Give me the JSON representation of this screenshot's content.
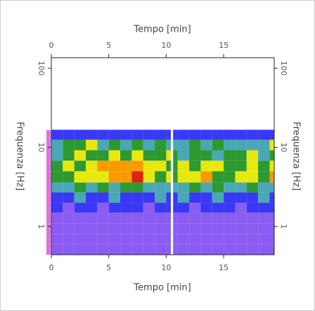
{
  "chart_data": {
    "type": "heatmap",
    "xlabel": "Tempo [min]",
    "ylabel": "Frequenza [Hz]",
    "x": [
      0,
      1,
      2,
      3,
      4,
      5,
      6,
      7,
      8,
      9,
      10,
      10.4,
      10.6,
      11,
      12,
      13,
      14,
      15,
      16,
      17,
      18,
      19,
      19.4
    ],
    "y": [
      0.44,
      0.6,
      0.8,
      1.1,
      1.5,
      2,
      2.7,
      3.6,
      5,
      6.8,
      9.2,
      12.5,
      16.7
    ],
    "z": [
      [
        1,
        1,
        1,
        1,
        1,
        1,
        1,
        1,
        1,
        1,
        1,
        null,
        1,
        1,
        1,
        1,
        1,
        1,
        1,
        1,
        1,
        1
      ],
      [
        1,
        1,
        1,
        1,
        1,
        1,
        1,
        1,
        1,
        1,
        1,
        null,
        1,
        1,
        1,
        1,
        1,
        1,
        1,
        1,
        1,
        1
      ],
      [
        1,
        1,
        1,
        1,
        1,
        1,
        1,
        1,
        1,
        1,
        1,
        null,
        1,
        1,
        1,
        1,
        1,
        1,
        1,
        1,
        1,
        1
      ],
      [
        1,
        1,
        1,
        1,
        1,
        1,
        1,
        1,
        1,
        1,
        1,
        null,
        1,
        1,
        1,
        1,
        1,
        1,
        1,
        1,
        1,
        1
      ],
      [
        2,
        1,
        2,
        2,
        1,
        2,
        2,
        2,
        1,
        2,
        2,
        null,
        2,
        2,
        1,
        2,
        2,
        2,
        1,
        2,
        2,
        2
      ],
      [
        2,
        2,
        3,
        2,
        2,
        3,
        2,
        2,
        2,
        3,
        2,
        null,
        2,
        3,
        2,
        2,
        3,
        2,
        2,
        2,
        3,
        2
      ],
      [
        3,
        3,
        4,
        3,
        4,
        3,
        4,
        4,
        3,
        3,
        3,
        null,
        3,
        3,
        4,
        3,
        4,
        3,
        3,
        4,
        3,
        3
      ],
      [
        4,
        4,
        5,
        5,
        5,
        6,
        6,
        7,
        5,
        4,
        5,
        null,
        4,
        5,
        5,
        6,
        4,
        4,
        5,
        5,
        4,
        6
      ],
      [
        4,
        5,
        4,
        5,
        6,
        6,
        6,
        6,
        5,
        5,
        4,
        null,
        4,
        5,
        4,
        5,
        5,
        4,
        4,
        5,
        4,
        5
      ],
      [
        3,
        4,
        5,
        4,
        4,
        5,
        4,
        5,
        4,
        4,
        5,
        null,
        4,
        3,
        4,
        4,
        3,
        4,
        4,
        5,
        3,
        4
      ],
      [
        3,
        4,
        4,
        5,
        3,
        4,
        3,
        4,
        3,
        4,
        3,
        null,
        3,
        3,
        4,
        3,
        4,
        3,
        3,
        3,
        3,
        5
      ],
      [
        2,
        2,
        2,
        2,
        2,
        2,
        2,
        2,
        2,
        2,
        2,
        null,
        2,
        2,
        2,
        2,
        2,
        2,
        2,
        2,
        2,
        2
      ]
    ],
    "colorscale": [
      "#8a5cf2",
      "#3838f6",
      "#4aa8b4",
      "#2c9a30",
      "#e8e810",
      "#f89a00",
      "#e02010"
    ],
    "xlim": [
      0,
      19.4
    ],
    "ylim": [
      0.44,
      136
    ],
    "ylog": true,
    "xticks": [
      0,
      5,
      10,
      15
    ],
    "yticks": [
      1,
      10,
      100
    ]
  }
}
